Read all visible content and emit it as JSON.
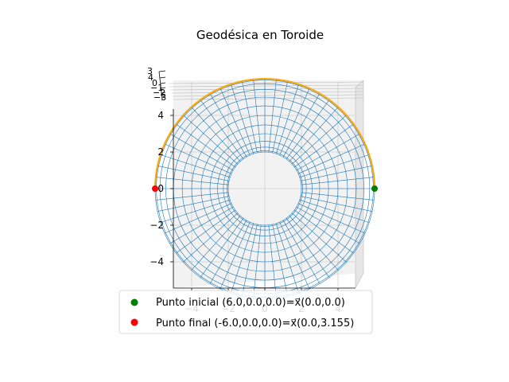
{
  "chart_data": {
    "type": "scatter",
    "title": "Geodésica en Toroide",
    "projection": "3d",
    "view": "top-down",
    "grid": true,
    "legend_position": "lower center",
    "surface": {
      "kind": "torus",
      "major_radius": 4,
      "minor_radius": 2,
      "color": "#1f77b4",
      "style": "wireframe"
    },
    "axes": {
      "x": {
        "ticks": [
          "−4",
          "−2",
          "0",
          "2",
          "4"
        ]
      },
      "y": {
        "ticks": [
          "−4",
          "−2",
          "0",
          "2",
          "4"
        ]
      },
      "z": {
        "ticks": [
          "3",
          "4",
          "0",
          "−1",
          "−2",
          "−3"
        ]
      }
    },
    "series": [
      {
        "kind": "line",
        "color": "#ffa500",
        "x": [
          6,
          4.24,
          0,
          -4.24,
          -6
        ],
        "y": [
          0,
          4.24,
          6,
          4.24,
          0.05
        ]
      },
      {
        "kind": "point",
        "name": "Punto inicial (6.0,0.0,0.0)=x⃗(0.0,0.0)",
        "color": "#008000",
        "x": [
          6.0
        ],
        "y": [
          0.0
        ],
        "z": [
          0.0
        ]
      },
      {
        "kind": "point",
        "name": "Punto final (-6.0,0.0,0.0)=x⃗(0.0,3.155)",
        "color": "#ff0000",
        "x": [
          -6.0
        ],
        "y": [
          0.0
        ],
        "z": [
          0.0
        ]
      }
    ]
  }
}
